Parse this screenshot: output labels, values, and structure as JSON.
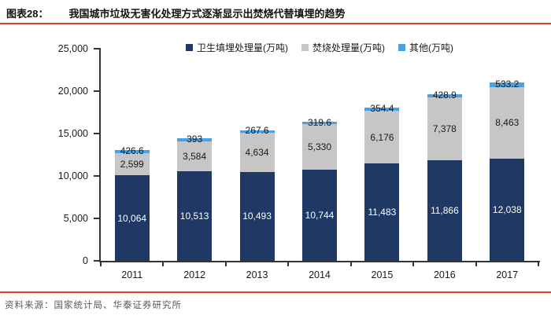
{
  "header": {
    "tag": "图表28：",
    "title": "我国城市垃圾无害化处理方式逐渐显示出焚烧代替填埋的趋势"
  },
  "footer": {
    "source": "资料来源：国家统计局、华泰证券研究所"
  },
  "colors": {
    "accent_rule": "#d6452e",
    "axis": "#333333",
    "tick_label": "#1a1a1a"
  },
  "chart_data": {
    "type": "bar",
    "stacked": true,
    "title": "我国城市垃圾无害化处理方式逐渐显示出焚烧代替填埋的趋势",
    "xlabel": "",
    "ylabel": "",
    "categories": [
      "2011",
      "2012",
      "2013",
      "2014",
      "2015",
      "2016",
      "2017"
    ],
    "series": [
      {
        "name": "卫生填埋处理量(万吨)",
        "key": "landfill",
        "color": "#1F3864",
        "label_color": "#ffffff",
        "values": [
          10064,
          10513,
          10493,
          10744,
          11483,
          11866,
          12038
        ],
        "labels": [
          "10,064",
          "10,513",
          "10,493",
          "10,744",
          "11,483",
          "11,866",
          "12,038"
        ]
      },
      {
        "name": "焚烧处理量(万吨)",
        "key": "incineration",
        "color": "#C6C6C6",
        "label_color": "#1a1a1a",
        "values": [
          2599,
          3584,
          4634,
          5330,
          6176,
          7378,
          8463
        ],
        "labels": [
          "2,599",
          "3,584",
          "4,634",
          "5,330",
          "6,176",
          "7,378",
          "8,463"
        ]
      },
      {
        "name": "其他(万吨)",
        "key": "other",
        "color": "#4AA0E0",
        "label_color": "#1a1a1a",
        "values": [
          426.6,
          393,
          267.6,
          319.6,
          354.4,
          428.9,
          533.2
        ],
        "labels": [
          "426.6",
          "393",
          "267.6",
          "319.6",
          "354.4",
          "428.9",
          "533.2"
        ]
      }
    ],
    "ylim": [
      0,
      25000
    ],
    "yticks": [
      0,
      5000,
      10000,
      15000,
      20000,
      25000
    ],
    "ytick_labels": [
      "0",
      "5,000",
      "10,000",
      "15,000",
      "20,000",
      "25,000"
    ],
    "legend_position": "top",
    "grid": false
  }
}
